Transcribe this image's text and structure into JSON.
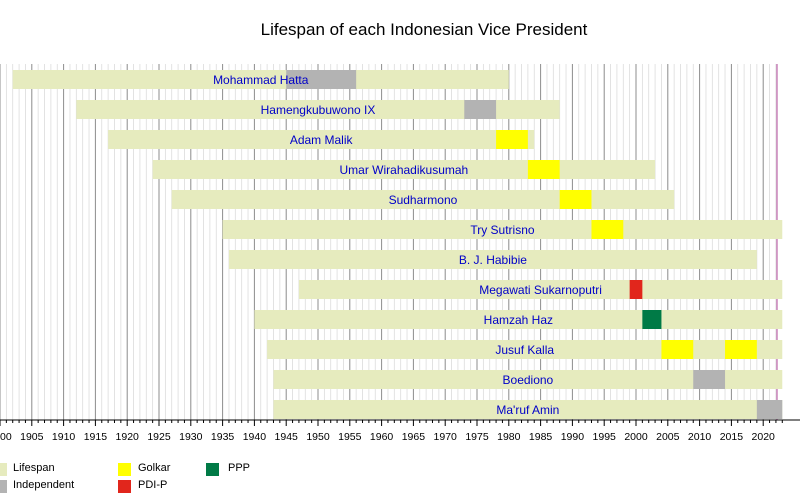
{
  "chart_data": {
    "type": "bar",
    "title": "Lifespan of each Indonesian Vice President",
    "xlabel": "",
    "ylabel": "",
    "xlim": [
      1900,
      2023
    ],
    "x_ticks": [
      "00",
      "1905",
      "1910",
      "1915",
      "1920",
      "1925",
      "1930",
      "1935",
      "1940",
      "1945",
      "1950",
      "1955",
      "1960",
      "1965",
      "1970",
      "1975",
      "1980",
      "1985",
      "1990",
      "1995",
      "2000",
      "2005",
      "2010",
      "2015",
      "2020"
    ],
    "grid": true,
    "legend_position": "bottom-left",
    "colors": {
      "Lifespan": "#e6ebbe",
      "Independent": "#b3b3b3",
      "Golkar": "#ffff00",
      "PDI-P": "#e1261c",
      "PPP": "#007a46"
    },
    "legend": [
      {
        "name": "Lifespan",
        "color": "#e6ebbe"
      },
      {
        "name": "Independent",
        "color": "#b3b3b3"
      },
      {
        "name": "Golkar",
        "color": "#ffff00"
      },
      {
        "name": "PDI-P",
        "color": "#e1261c"
      },
      {
        "name": "PPP",
        "color": "#007a46"
      }
    ],
    "rows": [
      {
        "name": "Mohammad Hatta",
        "born": 1902,
        "died": 1980,
        "terms": [
          {
            "party": "Independent",
            "start": 1945,
            "end": 1956
          }
        ]
      },
      {
        "name": "Hamengkubuwono IX",
        "born": 1912,
        "died": 1988,
        "terms": [
          {
            "party": "Independent",
            "start": 1973,
            "end": 1978
          }
        ]
      },
      {
        "name": "Adam Malik",
        "born": 1917,
        "died": 1984,
        "terms": [
          {
            "party": "Golkar",
            "start": 1978,
            "end": 1983
          }
        ]
      },
      {
        "name": "Umar Wirahadikusumah",
        "born": 1924,
        "died": 2003,
        "terms": [
          {
            "party": "Golkar",
            "start": 1983,
            "end": 1988
          }
        ]
      },
      {
        "name": "Sudharmono",
        "born": 1927,
        "died": 2006,
        "terms": [
          {
            "party": "Golkar",
            "start": 1988,
            "end": 1993
          }
        ]
      },
      {
        "name": "Try Sutrisno",
        "born": 1935,
        "died": 2023,
        "terms": [
          {
            "party": "Golkar",
            "start": 1993,
            "end": 1998
          }
        ]
      },
      {
        "name": "B. J. Habibie",
        "born": 1936,
        "died": 2019,
        "terms": []
      },
      {
        "name": "Megawati Sukarnoputri",
        "born": 1947,
        "died": 2023,
        "terms": [
          {
            "party": "PDI-P",
            "start": 1999,
            "end": 2001
          }
        ]
      },
      {
        "name": "Hamzah Haz",
        "born": 1940,
        "died": 2023,
        "terms": [
          {
            "party": "PPP",
            "start": 2001,
            "end": 2004
          }
        ]
      },
      {
        "name": "Jusuf Kalla",
        "born": 1942,
        "died": 2023,
        "terms": [
          {
            "party": "Golkar",
            "start": 2004,
            "end": 2009
          },
          {
            "party": "Golkar",
            "start": 2014,
            "end": 2019
          }
        ]
      },
      {
        "name": "Boediono",
        "born": 1943,
        "died": 2023,
        "terms": [
          {
            "party": "Independent",
            "start": 2009,
            "end": 2014
          }
        ]
      },
      {
        "name": "Ma'ruf Amin",
        "born": 1943,
        "died": 2023,
        "terms": [
          {
            "party": "Independent",
            "start": 2019,
            "end": 2023
          }
        ]
      }
    ]
  }
}
